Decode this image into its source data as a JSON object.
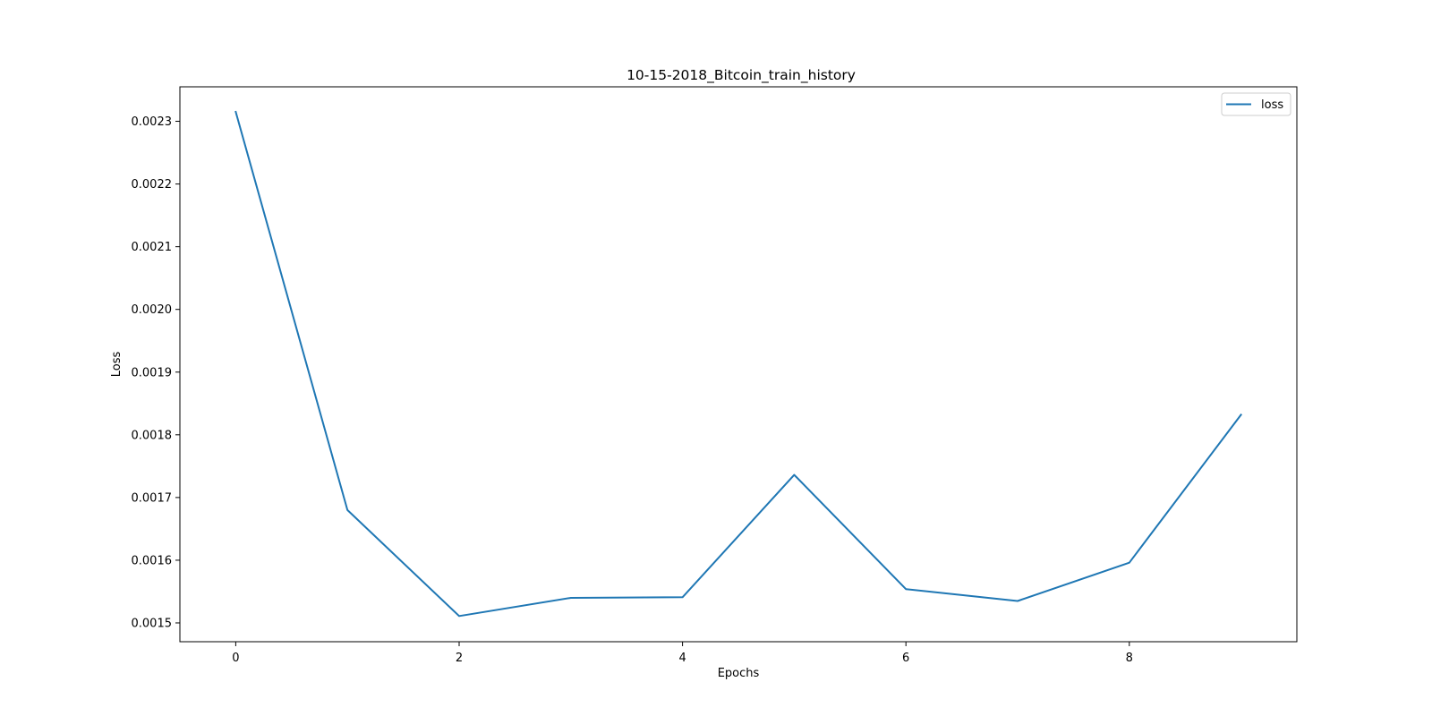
{
  "chart_data": {
    "type": "line",
    "title": "10-15-2018_Bitcoin_train_history",
    "xlabel": "Epochs",
    "ylabel": "Loss",
    "x": [
      0,
      1,
      2,
      3,
      4,
      5,
      6,
      7,
      8,
      9
    ],
    "series": [
      {
        "name": "loss",
        "color": "#1f77b4",
        "values": [
          0.002315,
          0.00168,
          0.001511,
          0.00154,
          0.001541,
          0.001736,
          0.001554,
          0.001535,
          0.001596,
          0.001832
        ]
      }
    ],
    "xlim": [
      -0.5,
      9.5
    ],
    "ylim": [
      0.00147,
      0.002355
    ],
    "xticks": [
      0,
      2,
      4,
      6,
      8
    ],
    "xtick_labels": [
      "0",
      "2",
      "4",
      "6",
      "8"
    ],
    "yticks": [
      0.0015,
      0.0016,
      0.0017,
      0.0018,
      0.0019,
      0.002,
      0.0021,
      0.0022,
      0.0023
    ],
    "ytick_labels": [
      "0.0015",
      "0.0016",
      "0.0017",
      "0.0018",
      "0.0019",
      "0.0020",
      "0.0021",
      "0.0022",
      "0.0023"
    ],
    "grid": false,
    "legend_position": "top-right"
  }
}
